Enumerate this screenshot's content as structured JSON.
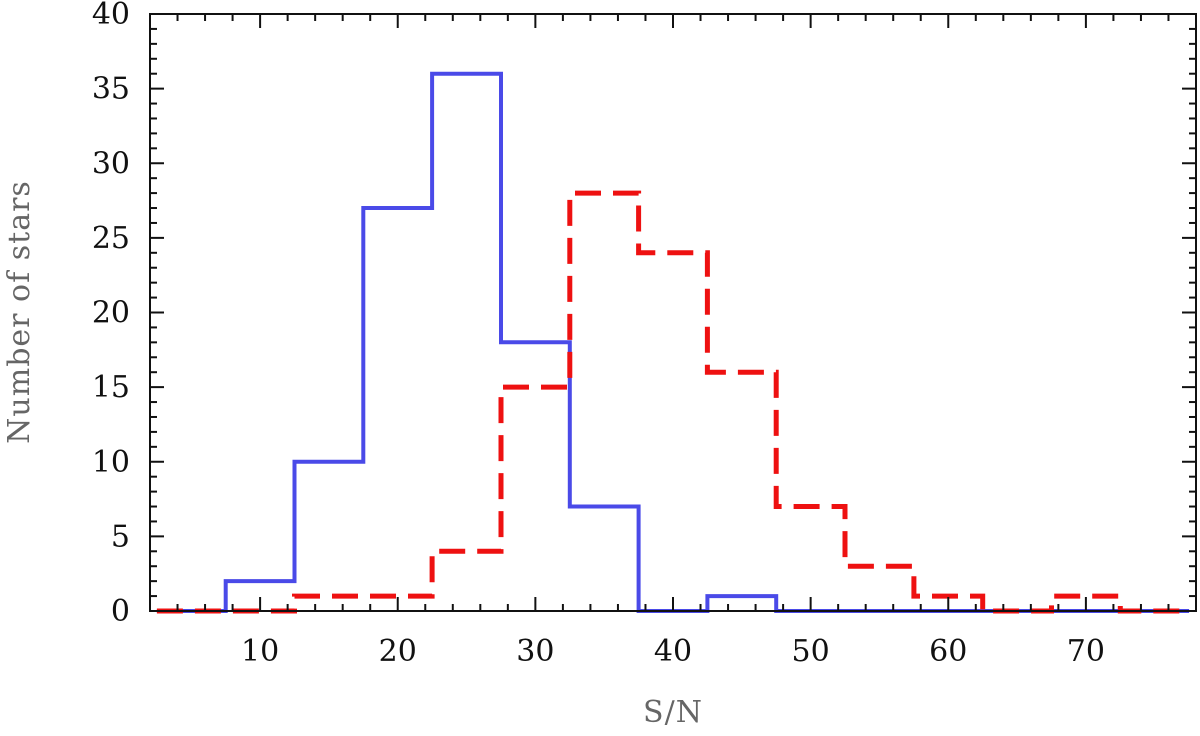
{
  "chart_data": {
    "type": "histogram",
    "xlabel": "S/N",
    "ylabel": "Number of stars",
    "xlim": [
      2,
      78
    ],
    "ylim": [
      0,
      40
    ],
    "x_ticks": [
      10,
      20,
      30,
      40,
      50,
      60,
      70
    ],
    "y_ticks": [
      0,
      5,
      10,
      15,
      20,
      25,
      30,
      35,
      40
    ],
    "x_minor_step": 2,
    "y_minor_step": 1,
    "bin_edges": [
      2.5,
      7.5,
      12.5,
      17.5,
      22.5,
      27.5,
      32.5,
      37.5,
      42.5,
      47.5,
      52.5,
      57.5,
      62.5,
      67.5,
      72.5,
      77.5
    ],
    "grid": false,
    "series": [
      {
        "style": "solid",
        "color": "#4a4ae8",
        "counts": [
          0,
          2,
          10,
          27,
          36,
          18,
          7,
          0,
          1,
          0,
          0,
          0,
          0,
          0,
          0
        ]
      },
      {
        "style": "dashed",
        "color": "#ee1111",
        "counts": [
          0,
          0,
          1,
          1,
          4,
          15,
          28,
          24,
          16,
          7,
          3,
          1,
          0,
          1,
          0
        ]
      }
    ]
  }
}
